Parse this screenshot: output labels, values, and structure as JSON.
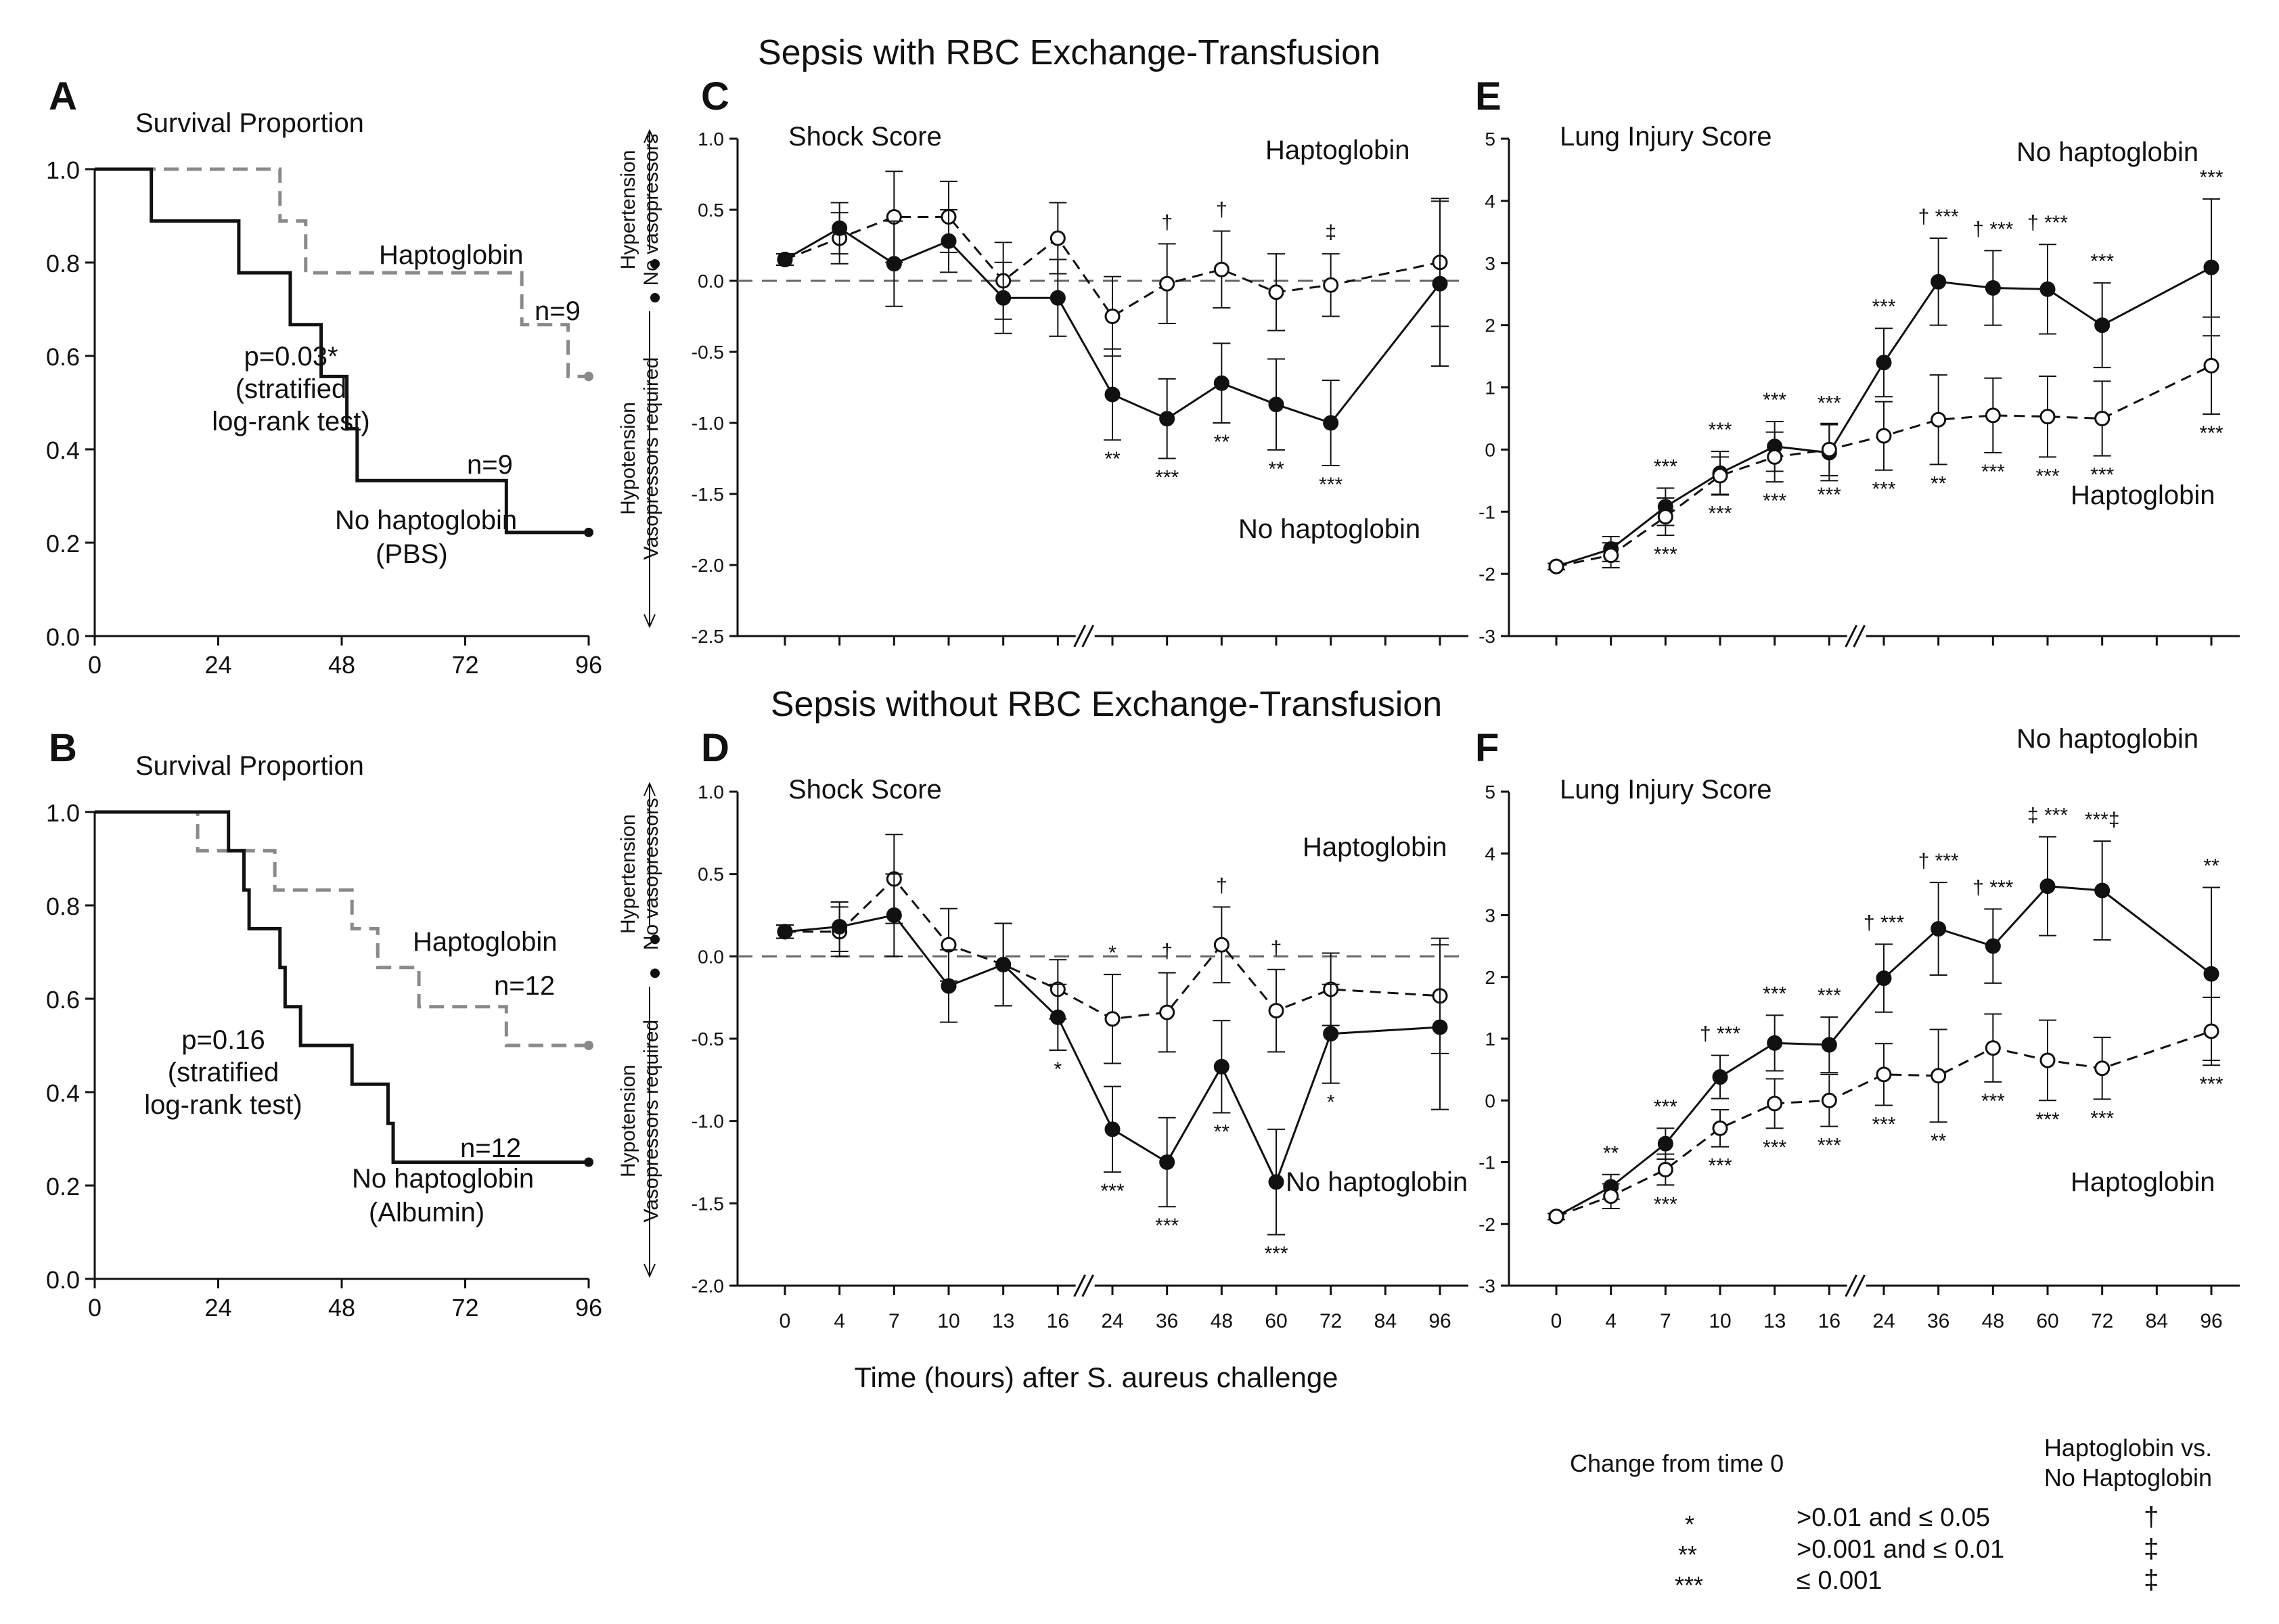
{
  "headers": {
    "top": "Sepsis with RBC Exchange-Transfusion",
    "bottom": "Sepsis without RBC Exchange-Transfusion",
    "shared_xlabel": "Time (hours) after  S. aureus  challenge"
  },
  "colors": {
    "dark": "#111111",
    "gray": "#8a8a8a"
  },
  "legend": {
    "change_header": "Change from time 0",
    "compare_header_1": "Haptoglobin vs.",
    "compare_header_2": "No Haptoglobin",
    "rows": [
      {
        "change_sym": "*",
        "range": ">0.01 and ≤ 0.05",
        "compare_sym": "†"
      },
      {
        "change_sym": "**",
        "range": ">0.001 and ≤ 0.01",
        "compare_sym": "‡"
      },
      {
        "change_sym": "***",
        "range": "≤ 0.001",
        "compare_sym": "‡"
      }
    ]
  },
  "chart_data": [
    {
      "panel": "A",
      "type": "line",
      "title": "Survival Proportion",
      "xlim": [
        0,
        96
      ],
      "ylim": [
        0,
        1.0
      ],
      "xticks": [
        "0",
        "24",
        "48",
        "72",
        "96"
      ],
      "yticks": [
        "0.0",
        "0.2",
        "0.4",
        "0.6",
        "0.8",
        "1.0"
      ],
      "series": [
        {
          "name": "Haptoglobin",
          "n": "n=9",
          "style": "dashed-gray",
          "steps": [
            [
              0,
              1.0
            ],
            [
              36,
              1.0
            ],
            [
              36,
              0.889
            ],
            [
              41,
              0.889
            ],
            [
              41,
              0.778
            ],
            [
              83,
              0.778
            ],
            [
              83,
              0.667
            ],
            [
              92,
              0.667
            ],
            [
              92,
              0.556
            ],
            [
              96,
              0.556
            ]
          ]
        },
        {
          "name": "No haptoglobin",
          "n": "n=9",
          "style": "solid-black",
          "steps": [
            [
              0,
              1.0
            ],
            [
              11,
              1.0
            ],
            [
              11,
              0.889
            ],
            [
              28,
              0.889
            ],
            [
              28,
              0.778
            ],
            [
              38,
              0.778
            ],
            [
              38,
              0.667
            ],
            [
              44,
              0.667
            ],
            [
              44,
              0.556
            ],
            [
              49,
              0.556
            ],
            [
              49,
              0.444
            ],
            [
              51,
              0.444
            ],
            [
              51,
              0.333
            ],
            [
              80,
              0.333
            ],
            [
              80,
              0.222
            ],
            [
              96,
              0.222
            ]
          ]
        }
      ],
      "annotations": {
        "hapto_label": "Haptoglobin",
        "hapto_n": "n=9",
        "nohapto_n": "n=9",
        "nohapto_label_1": "No haptoglobin",
        "nohapto_label_2": "(PBS)",
        "p_1": "p=0.03*",
        "p_2": "(stratified",
        "p_3": "log-rank test)"
      }
    },
    {
      "panel": "B",
      "type": "line",
      "title": "Survival Proportion",
      "xlim": [
        0,
        96
      ],
      "ylim": [
        0,
        1.0
      ],
      "xticks": [
        "0",
        "24",
        "48",
        "72",
        "96"
      ],
      "yticks": [
        "0.0",
        "0.2",
        "0.4",
        "0.6",
        "0.8",
        "1.0"
      ],
      "series": [
        {
          "name": "Haptoglobin",
          "n": "n=12",
          "style": "dashed-gray",
          "steps": [
            [
              0,
              1.0
            ],
            [
              20,
              1.0
            ],
            [
              20,
              0.917
            ],
            [
              35,
              0.917
            ],
            [
              35,
              0.833
            ],
            [
              50,
              0.833
            ],
            [
              50,
              0.75
            ],
            [
              55,
              0.75
            ],
            [
              55,
              0.667
            ],
            [
              63,
              0.667
            ],
            [
              63,
              0.583
            ],
            [
              80,
              0.583
            ],
            [
              80,
              0.5
            ],
            [
              96,
              0.5
            ]
          ]
        },
        {
          "name": "No haptoglobin",
          "n": "n=12",
          "style": "solid-black",
          "steps": [
            [
              0,
              1.0
            ],
            [
              26,
              1.0
            ],
            [
              26,
              0.917
            ],
            [
              29,
              0.917
            ],
            [
              29,
              0.833
            ],
            [
              30,
              0.833
            ],
            [
              30,
              0.75
            ],
            [
              36,
              0.75
            ],
            [
              36,
              0.667
            ],
            [
              37,
              0.667
            ],
            [
              37,
              0.583
            ],
            [
              40,
              0.583
            ],
            [
              40,
              0.5
            ],
            [
              50,
              0.5
            ],
            [
              50,
              0.417
            ],
            [
              57,
              0.417
            ],
            [
              57,
              0.333
            ],
            [
              58,
              0.333
            ],
            [
              58,
              0.25
            ],
            [
              96,
              0.25
            ]
          ]
        }
      ],
      "annotations": {
        "hapto_label": "Haptoglobin",
        "hapto_n": "n=12",
        "nohapto_n": "n=12",
        "nohapto_label_1": "No haptoglobin",
        "nohapto_label_2": "(Albumin)",
        "p_1": "p=0.16",
        "p_2": "(stratified",
        "p_3": "log-rank test)"
      }
    },
    {
      "panel": "C",
      "type": "line",
      "title": "Shock Score",
      "ylim": [
        -2.5,
        1.0
      ],
      "yticks": [
        "1.0",
        "0.5",
        "0.0",
        "-0.5",
        "-1.0",
        "-1.5",
        "-2.0",
        "-2.5"
      ],
      "xticks": [],
      "categories": [
        "0",
        "4",
        "7",
        "10",
        "13",
        "16",
        "24",
        "36",
        "48",
        "60",
        "72",
        "84",
        "96"
      ],
      "y_side_labels": {
        "upper_1": "Hypertension",
        "upper_2": "No vasopressors",
        "lower_1": "Hypotension",
        "lower_2": "Vasopressors required"
      },
      "series": [
        {
          "name": "Haptoglobin",
          "marker": "open",
          "style": "dashed",
          "values": [
            0.15,
            0.3,
            0.45,
            0.45,
            0.0,
            0.3,
            -0.25,
            -0.02,
            0.08,
            -0.08,
            -0.03,
            null,
            0.13
          ],
          "errors": [
            0.04,
            0.18,
            0.32,
            0.25,
            0.27,
            0.25,
            0.28,
            0.28,
            0.27,
            0.27,
            0.22,
            null,
            0.45
          ],
          "labels": [
            "",
            "",
            "",
            "",
            "",
            "",
            "",
            "†",
            "†",
            "",
            "‡",
            "",
            ""
          ],
          "labels_below": [
            "",
            "",
            "",
            "",
            "",
            "",
            "",
            "",
            "",
            "",
            "",
            "",
            ""
          ]
        },
        {
          "name": "No haptoglobin",
          "marker": "filled",
          "style": "solid",
          "values": [
            0.15,
            0.37,
            0.12,
            0.28,
            -0.12,
            -0.12,
            -0.8,
            -0.97,
            -0.72,
            -0.87,
            -1.0,
            null,
            -0.02
          ],
          "errors": [
            0.04,
            0.18,
            0.3,
            0.22,
            0.25,
            0.27,
            0.32,
            0.28,
            0.28,
            0.32,
            0.3,
            null,
            0.58
          ],
          "labels": [
            "",
            "",
            "",
            "",
            "",
            "",
            "",
            "",
            "",
            "",
            "",
            "",
            ""
          ],
          "labels_below": [
            "",
            "",
            "",
            "",
            "",
            "",
            "**",
            "***",
            "**",
            "**",
            "***",
            "",
            ""
          ]
        }
      ],
      "series_labels": {
        "top_right": "Haptoglobin",
        "bottom_right": "No haptoglobin"
      }
    },
    {
      "panel": "D",
      "type": "line",
      "title": "Shock Score",
      "ylim": [
        -2.0,
        1.0
      ],
      "yticks": [
        "1.0",
        "0.5",
        "0.0",
        "-0.5",
        "-1.0",
        "-1.5",
        "-2.0"
      ],
      "xticks": [
        "0",
        "4",
        "7",
        "10",
        "13",
        "16",
        "24",
        "36",
        "48",
        "60",
        "72",
        "84",
        "96"
      ],
      "categories": [
        "0",
        "4",
        "7",
        "10",
        "13",
        "16",
        "24",
        "36",
        "48",
        "60",
        "72",
        "84",
        "96"
      ],
      "y_side_labels": {
        "upper_1": "Hypertension",
        "upper_2": "No vasopressors",
        "lower_1": "Hypotension",
        "lower_2": "Vasopressors required"
      },
      "series": [
        {
          "name": "Haptoglobin",
          "marker": "open",
          "style": "dashed",
          "values": [
            0.15,
            0.15,
            0.47,
            0.07,
            -0.05,
            -0.2,
            -0.38,
            -0.34,
            0.07,
            -0.33,
            -0.2,
            null,
            -0.24
          ],
          "errors": [
            0.04,
            0.15,
            0.27,
            0.22,
            0.25,
            0.18,
            0.27,
            0.24,
            0.23,
            0.25,
            0.22,
            null,
            0.35
          ],
          "labels": [
            "",
            "",
            "",
            "",
            "",
            "",
            "*",
            "†",
            "†",
            "†",
            "",
            "",
            ""
          ],
          "labels_below": [
            "",
            "",
            "",
            "",
            "",
            "",
            "",
            "",
            "",
            "",
            "",
            "",
            ""
          ]
        },
        {
          "name": "No haptoglobin",
          "marker": "filled",
          "style": "solid",
          "values": [
            0.15,
            0.18,
            0.25,
            -0.18,
            -0.05,
            -0.37,
            -1.05,
            -1.25,
            -0.67,
            -1.37,
            -0.47,
            null,
            -0.43
          ],
          "errors": [
            0.04,
            0.15,
            0.25,
            0.22,
            0.25,
            0.2,
            0.26,
            0.27,
            0.28,
            0.32,
            0.3,
            null,
            0.5
          ],
          "labels": [
            "",
            "",
            "",
            "",
            "",
            "",
            "",
            "",
            "",
            "",
            "",
            "",
            ""
          ],
          "labels_below": [
            "",
            "",
            "",
            "",
            "",
            "*",
            "***",
            "***",
            "**",
            "***",
            "*",
            "",
            ""
          ]
        }
      ],
      "series_labels": {
        "top_right": "Haptoglobin",
        "bottom_right": "No haptoglobin"
      }
    },
    {
      "panel": "E",
      "type": "line",
      "title": "Lung Injury Score",
      "ylim": [
        -3,
        5
      ],
      "yticks": [
        "5",
        "4",
        "3",
        "2",
        "1",
        "0",
        "-1",
        "-2",
        "-3"
      ],
      "xticks": [],
      "categories": [
        "0",
        "4",
        "7",
        "10",
        "13",
        "16",
        "24",
        "36",
        "48",
        "60",
        "72",
        "84",
        "96"
      ],
      "series": [
        {
          "name": "No haptoglobin",
          "marker": "filled",
          "style": "solid",
          "values": [
            -1.88,
            -1.6,
            -0.92,
            -0.38,
            0.05,
            -0.05,
            1.4,
            2.7,
            2.6,
            2.58,
            2.0,
            null,
            2.93
          ],
          "errors": [
            0.05,
            0.2,
            0.3,
            0.35,
            0.4,
            0.45,
            0.55,
            0.7,
            0.6,
            0.72,
            0.68,
            null,
            1.1
          ],
          "labels": [
            "",
            "",
            "***",
            "***",
            "***",
            "***",
            "***",
            "† ***",
            "† ***",
            "† ***",
            "***",
            "",
            "***"
          ],
          "labels_below": [
            "",
            "",
            "",
            "",
            "",
            "",
            "",
            "",
            "",
            "",
            "",
            "",
            ""
          ]
        },
        {
          "name": "Haptoglobin",
          "marker": "open",
          "style": "dashed",
          "values": [
            -1.88,
            -1.7,
            -1.08,
            -0.42,
            -0.12,
            0.0,
            0.22,
            0.48,
            0.55,
            0.53,
            0.5,
            null,
            1.35
          ],
          "errors": [
            0.05,
            0.2,
            0.3,
            0.3,
            0.4,
            0.42,
            0.55,
            0.72,
            0.6,
            0.65,
            0.6,
            null,
            0.78
          ],
          "labels": [
            "",
            "",
            "",
            "",
            "",
            "",
            "",
            "",
            "",
            "",
            "",
            "",
            ""
          ],
          "labels_below": [
            "",
            "",
            "***",
            "***",
            "***",
            "***",
            "***",
            "**",
            "***",
            "***",
            "***",
            "",
            "***"
          ]
        }
      ],
      "series_labels": {
        "top_right": "No haptoglobin",
        "bottom_right": "Haptoglobin"
      }
    },
    {
      "panel": "F",
      "type": "line",
      "title": "Lung Injury Score",
      "ylim": [
        -3,
        5
      ],
      "yticks": [
        "5",
        "4",
        "3",
        "2",
        "1",
        "0",
        "-1",
        "-2",
        "-3"
      ],
      "xticks": [
        "0",
        "4",
        "7",
        "10",
        "13",
        "16",
        "24",
        "36",
        "48",
        "60",
        "72",
        "84",
        "96"
      ],
      "categories": [
        "0",
        "4",
        "7",
        "10",
        "13",
        "16",
        "24",
        "36",
        "48",
        "60",
        "72",
        "84",
        "96"
      ],
      "series": [
        {
          "name": "No haptoglobin",
          "marker": "filled",
          "style": "solid",
          "values": [
            -1.88,
            -1.4,
            -0.7,
            0.38,
            0.93,
            0.9,
            1.98,
            2.78,
            2.5,
            3.47,
            3.4,
            null,
            2.05
          ],
          "errors": [
            0.05,
            0.2,
            0.25,
            0.35,
            0.45,
            0.45,
            0.55,
            0.75,
            0.6,
            0.8,
            0.8,
            null,
            1.4
          ],
          "labels": [
            "",
            "**",
            "***",
            "† ***",
            "***",
            "***",
            "† ***",
            "† ***",
            "† ***",
            "‡ ***",
            "***‡",
            "",
            "**"
          ],
          "labels_below": [
            "",
            "",
            "",
            "",
            "",
            "",
            "",
            "",
            "",
            "",
            "",
            "",
            ""
          ]
        },
        {
          "name": "Haptoglobin",
          "marker": "open",
          "style": "dashed",
          "values": [
            -1.88,
            -1.55,
            -1.12,
            -0.45,
            -0.05,
            0.0,
            0.42,
            0.4,
            0.85,
            0.65,
            0.52,
            null,
            1.12
          ],
          "errors": [
            0.05,
            0.2,
            0.25,
            0.3,
            0.4,
            0.42,
            0.5,
            0.75,
            0.55,
            0.65,
            0.5,
            null,
            0.55
          ],
          "labels": [
            "",
            "",
            "",
            "",
            "",
            "",
            "",
            "",
            "",
            "",
            "",
            "",
            ""
          ],
          "labels_below": [
            "",
            "",
            "***",
            "***",
            "***",
            "***",
            "***",
            "**",
            "***",
            "***",
            "***",
            "",
            "***"
          ]
        }
      ],
      "series_labels": {
        "top_right": "No haptoglobin",
        "bottom_right": "Haptoglobin"
      }
    }
  ]
}
